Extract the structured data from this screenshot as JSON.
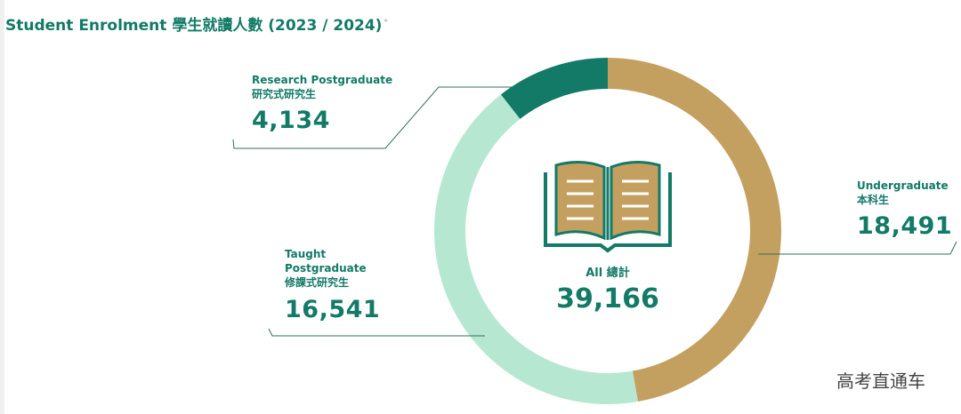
{
  "title": "Student Enrolment 學生就讀人數 (2023 / 2024)",
  "title_mark": "*",
  "colors": {
    "undergraduate": "#c4a060",
    "taught": "#b6e7d1",
    "research": "#127a66",
    "text": "#127a66"
  },
  "center": {
    "label": "All 總計",
    "value": "39,166",
    "icon": "open-book-icon"
  },
  "chart_data": {
    "type": "pie",
    "variant": "donut",
    "title": "Student Enrolment 學生就讀人數 (2023 / 2024)",
    "total": 39166,
    "slices": [
      {
        "label_en": "Undergraduate",
        "label_zh": "本科生",
        "value": 18491,
        "display": "18,491",
        "color": "#c4a060"
      },
      {
        "label_en": "Taught Postgraduate",
        "label_zh": "修課式研究生",
        "value": 16541,
        "display": "16,541",
        "color": "#b6e7d1"
      },
      {
        "label_en": "Research Postgraduate",
        "label_zh": "研究式研究生",
        "value": 4134,
        "display": "4,134",
        "color": "#127a66"
      }
    ]
  },
  "watermark": "高考直通车"
}
